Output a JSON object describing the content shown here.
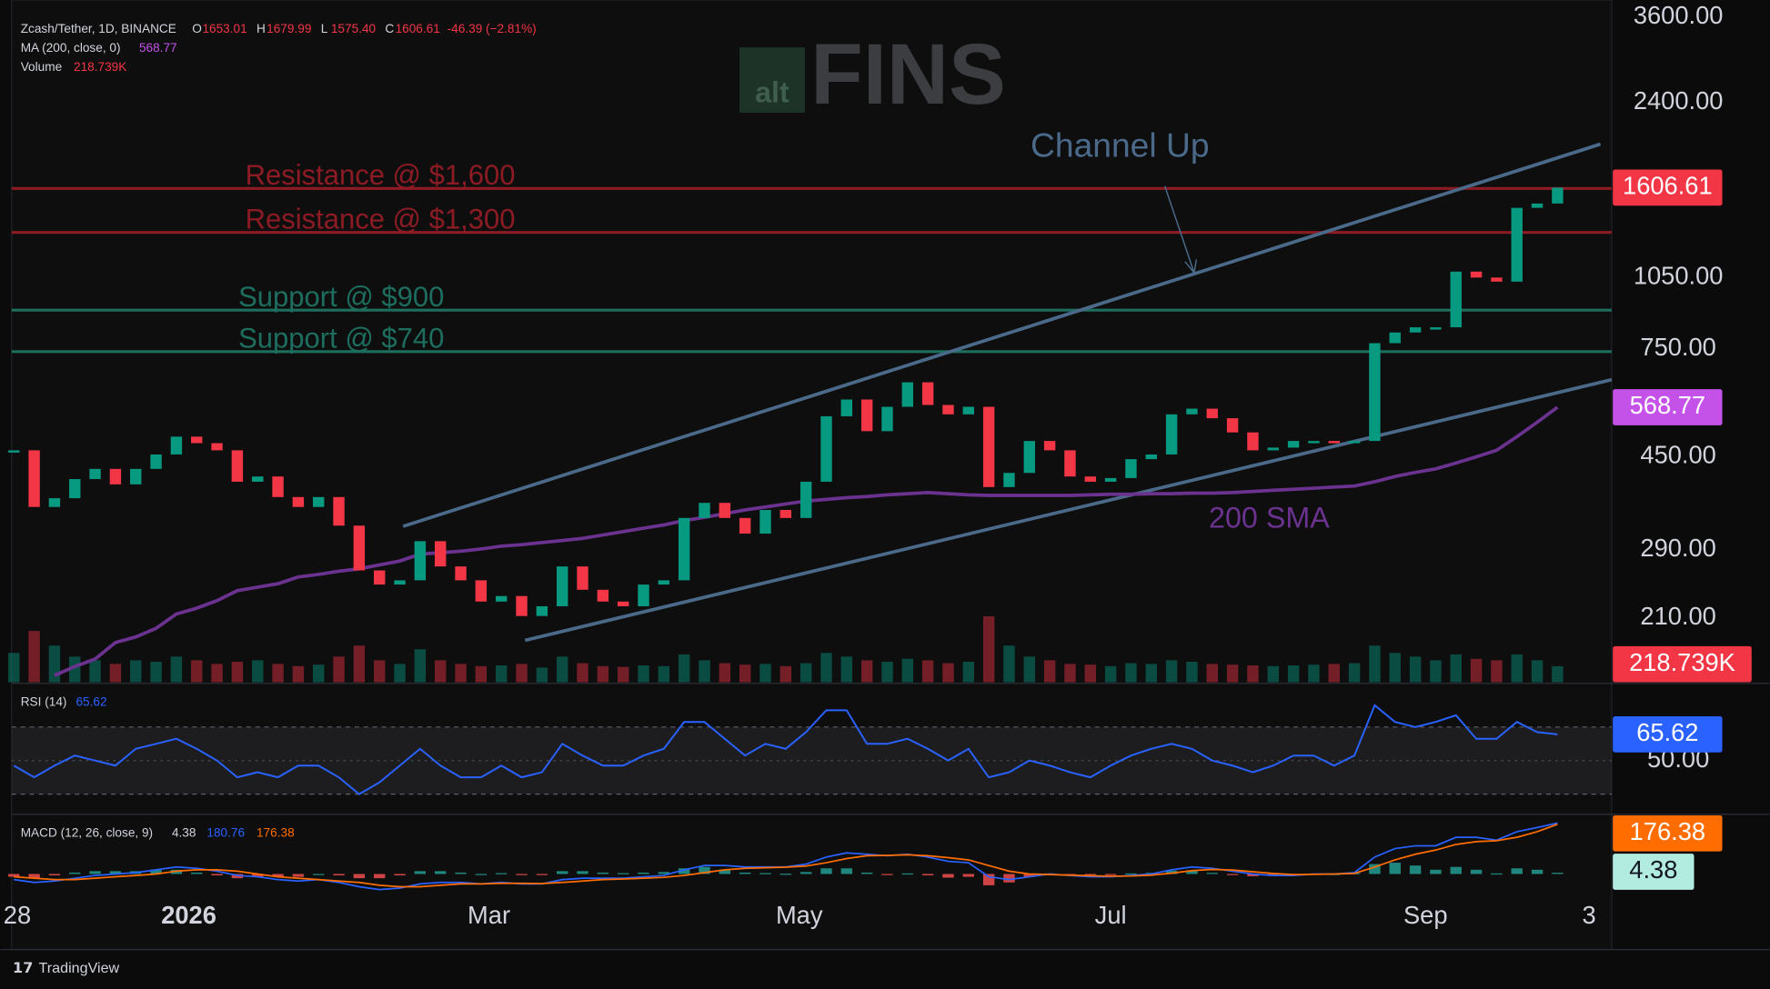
{
  "header": {
    "title": "Zcash/Tether, 1D, BINANCE",
    "ohlc": [
      {
        "key": "O",
        "value": "1653.01"
      },
      {
        "key": "H",
        "value": "1679.99"
      },
      {
        "key": "L",
        "value": "1575.40"
      },
      {
        "key": "C",
        "value": "1606.61"
      }
    ],
    "change": "-46.39 (−2.81%)",
    "ma_label": "MA (200, close, 0)",
    "ma_value": "568.77",
    "volume_label": "Volume",
    "volume_value": "218.739K",
    "rsi_label": "RSI (14)",
    "rsi_value": "65.62",
    "macd_label": "MACD (12, 26, close, 9)",
    "macd_values": [
      "4.38",
      "180.76",
      "176.38"
    ]
  },
  "chart_data": {
    "type": "candlestick",
    "watermark": [
      "alt",
      "FINS"
    ],
    "closes": [
      464,
      355,
      370,
      405,
      425,
      395,
      425,
      455,
      495,
      480,
      464,
      400,
      410,
      372,
      355,
      372,
      325,
      263,
      246,
      251,
      302,
      268,
      251,
      227,
      233,
      212,
      222,
      268,
      240,
      227,
      222,
      246,
      251,
      337,
      362,
      337,
      313,
      350,
      337,
      400,
      545,
      590,
      508,
      570,
      640,
      575,
      550,
      570,
      390,
      417,
      485,
      464,
      410,
      400,
      407,
      445,
      455,
      550,
      565,
      540,
      505,
      464,
      470,
      485,
      485,
      480,
      485,
      770,
      810,
      830,
      830,
      1080,
      1050,
      1030,
      1460,
      1490,
      1606.61
    ],
    "color_up": "#089981",
    "color_down": "#f23645",
    "log_scale": true,
    "grid": false,
    "ylim": [
      155,
      3900
    ],
    "yticks": [
      {
        "value": 3600,
        "label": "3600.00"
      },
      {
        "value": 2400,
        "label": "2400.00"
      },
      {
        "value": 1050,
        "label": "1050.00"
      },
      {
        "value": 750,
        "label": "750.00"
      },
      {
        "value": 450,
        "label": "450.00"
      },
      {
        "value": 290,
        "label": "290.00"
      },
      {
        "value": 210,
        "label": "210.00"
      }
    ],
    "x_labels": [
      "28",
      "2026",
      "Mar",
      "May",
      "Jul",
      "Sep",
      "3"
    ],
    "sma": {
      "name": "200 SMA",
      "color": "#6b3290",
      "tag_color": "#c452e8",
      "values": [
        null,
        null,
        160,
        167,
        173,
        187,
        192,
        200,
        214,
        220,
        228,
        239,
        243,
        247,
        255,
        258,
        262,
        265,
        270,
        275,
        284,
        286,
        288,
        291,
        295,
        297,
        300,
        303,
        306,
        311,
        316,
        321,
        326,
        333,
        338,
        344,
        350,
        355,
        360,
        365,
        368,
        371,
        373,
        376,
        378,
        380,
        378,
        376,
        375,
        375,
        375,
        375,
        375,
        376,
        377,
        377,
        378,
        378,
        379,
        379,
        380,
        382,
        384,
        386,
        388,
        390,
        392,
        400,
        410,
        418,
        425,
        437,
        450,
        464,
        495,
        530,
        568.77
      ]
    },
    "levels": [
      {
        "label": "Resistance @ $1,600",
        "value": 1600,
        "color": "#8c1b24"
      },
      {
        "label": "Resistance @ $1,300",
        "value": 1300,
        "color": "#8c1b24"
      },
      {
        "label": "Support @ $900",
        "value": 900,
        "color": "#1d6e5e"
      },
      {
        "label": "Support @ $740",
        "value": 740,
        "color": "#1d6e5e"
      }
    ],
    "channel": {
      "label": "Channel Up",
      "color": "#4b6a89",
      "upper": [
        324,
        1973
      ],
      "lower": [
        189,
        648
      ]
    },
    "volume": {
      "values": [
        400,
        700,
        500,
        350,
        300,
        250,
        300,
        280,
        350,
        300,
        250,
        280,
        300,
        250,
        220,
        240,
        350,
        500,
        300,
        250,
        450,
        300,
        250,
        220,
        230,
        250,
        200,
        350,
        260,
        220,
        210,
        230,
        220,
        380,
        300,
        260,
        240,
        250,
        220,
        260,
        400,
        350,
        300,
        280,
        320,
        300,
        260,
        280,
        900,
        500,
        350,
        300,
        250,
        240,
        220,
        260,
        250,
        300,
        280,
        250,
        240,
        230,
        220,
        230,
        240,
        250,
        260,
        500,
        400,
        350,
        300,
        380,
        320,
        300,
        380,
        300,
        218.739
      ],
      "last_value_label": "218.739K",
      "tag_color": "#f23645"
    },
    "rsi": {
      "color": "#2962ff",
      "ylim": [
        18,
        92
      ],
      "yticks": [
        {
          "value": 50,
          "label": "50.00"
        }
      ],
      "bands": [
        70,
        30
      ],
      "values": [
        47,
        40,
        47,
        53,
        50,
        47,
        57,
        60,
        63,
        57,
        50,
        40,
        43,
        40,
        47,
        47,
        40,
        30,
        37,
        47,
        57,
        47,
        40,
        40,
        47,
        40,
        43,
        60,
        53,
        47,
        47,
        53,
        57,
        73,
        73,
        63,
        53,
        60,
        57,
        67,
        80,
        80,
        60,
        60,
        63,
        57,
        50,
        57,
        40,
        43,
        50,
        47,
        43,
        40,
        47,
        53,
        57,
        60,
        57,
        50,
        47,
        43,
        47,
        53,
        53,
        47,
        53,
        83,
        73,
        70,
        73,
        77,
        63,
        63,
        73,
        67,
        65.62
      ]
    },
    "macd": {
      "ylim": [
        -100,
        200
      ],
      "macd_color": "#2962ff",
      "signal_color": "#ff6d00",
      "hist_up": "#26a69a",
      "hist_down": "#ff5252",
      "hist_tag_color": "#b2ebe0",
      "macd": [
        -20,
        -30,
        -25,
        -15,
        -5,
        0,
        5,
        15,
        25,
        20,
        10,
        -5,
        -10,
        -20,
        -25,
        -20,
        -30,
        -45,
        -55,
        -50,
        -35,
        -30,
        -30,
        -35,
        -30,
        -35,
        -35,
        -20,
        -15,
        -15,
        -15,
        -10,
        -5,
        15,
        30,
        30,
        25,
        25,
        25,
        35,
        60,
        75,
        70,
        65,
        70,
        60,
        45,
        40,
        -10,
        -20,
        -10,
        0,
        -5,
        -10,
        -10,
        -5,
        0,
        15,
        25,
        20,
        10,
        0,
        -5,
        -5,
        0,
        0,
        5,
        60,
        90,
        100,
        100,
        130,
        130,
        120,
        150,
        165,
        180.76
      ],
      "signal": [
        -10,
        -15,
        -20,
        -20,
        -15,
        -10,
        -5,
        0,
        10,
        15,
        15,
        10,
        0,
        -10,
        -15,
        -20,
        -25,
        -30,
        -40,
        -45,
        -45,
        -40,
        -35,
        -35,
        -33,
        -33,
        -34,
        -30,
        -25,
        -20,
        -18,
        -15,
        -12,
        -5,
        5,
        15,
        20,
        22,
        24,
        28,
        40,
        55,
        65,
        66,
        68,
        65,
        58,
        50,
        30,
        10,
        0,
        -2,
        -4,
        -6,
        -8,
        -7,
        -4,
        3,
        12,
        16,
        14,
        8,
        2,
        -2,
        -1,
        0,
        2,
        25,
        50,
        70,
        85,
        105,
        115,
        118,
        130,
        150,
        176.38
      ],
      "histogram": [
        -10,
        -15,
        -5,
        5,
        10,
        10,
        10,
        15,
        15,
        5,
        -5,
        -15,
        -10,
        -10,
        -10,
        0,
        -5,
        -15,
        -15,
        -5,
        10,
        10,
        5,
        0,
        3,
        -2,
        -1,
        10,
        10,
        5,
        3,
        5,
        7,
        20,
        25,
        15,
        5,
        3,
        1,
        7,
        20,
        20,
        5,
        -1,
        2,
        -5,
        -13,
        -10,
        -40,
        -30,
        -10,
        2,
        -1,
        -4,
        -2,
        2,
        4,
        12,
        13,
        4,
        -4,
        -8,
        -7,
        -3,
        1,
        0,
        3,
        35,
        40,
        30,
        15,
        25,
        15,
        2,
        20,
        15,
        4.38
      ]
    }
  },
  "footer": "TradingView"
}
